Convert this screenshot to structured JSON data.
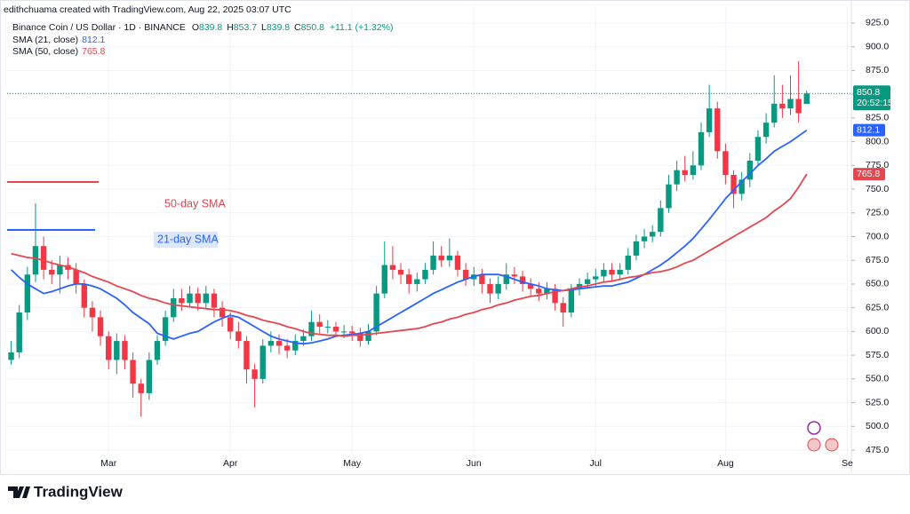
{
  "attribution": "edithchuama created with TradingView.com, Aug 22, 2025 03:07 UTC",
  "header": {
    "symbol": "Binance Coin / US Dollar · 1D · BINANCE",
    "ohlc_letters": [
      "O",
      "H",
      "L",
      "C"
    ],
    "change": "+11.1 (+1.32%)",
    "countdown": "20:52:15"
  },
  "brand": "TradingView",
  "chart_data": {
    "type": "candlestick",
    "categories": [
      null,
      null,
      null,
      null,
      null,
      null,
      null,
      null,
      null,
      null,
      null,
      null,
      "Mar",
      null,
      null,
      null,
      null,
      null,
      null,
      null,
      null,
      null,
      null,
      null,
      null,
      null,
      null,
      "Apr",
      null,
      null,
      null,
      null,
      null,
      null,
      null,
      null,
      null,
      null,
      null,
      null,
      null,
      null,
      "May",
      null,
      null,
      null,
      null,
      null,
      null,
      null,
      null,
      null,
      null,
      null,
      null,
      null,
      null,
      "Jun",
      null,
      null,
      null,
      null,
      null,
      null,
      null,
      null,
      null,
      null,
      null,
      null,
      null,
      null,
      "Jul",
      null,
      null,
      null,
      null,
      null,
      null,
      null,
      null,
      null,
      null,
      null,
      null,
      null,
      null,
      null,
      "Aug",
      null,
      null,
      null,
      null,
      null,
      null,
      null,
      null,
      null,
      null,
      null,
      null,
      null,
      null,
      "Se"
    ],
    "open": [
      570,
      578,
      620,
      660,
      690,
      665,
      660,
      670,
      665,
      650,
      625,
      615,
      595,
      570,
      590,
      570,
      545,
      535,
      570,
      590,
      615,
      635,
      630,
      640,
      630,
      640,
      625,
      615,
      600,
      590,
      560,
      550,
      585,
      590,
      585,
      580,
      590,
      595,
      610,
      605,
      605,
      600,
      600,
      598,
      590,
      600,
      640,
      670,
      665,
      660,
      650,
      655,
      665,
      680,
      675,
      680,
      665,
      655,
      660,
      650,
      640,
      650,
      660,
      658,
      650,
      645,
      640,
      645,
      630,
      620,
      645,
      650,
      655,
      658,
      665,
      660,
      665,
      680,
      695,
      700,
      705,
      730,
      755,
      770,
      765,
      775,
      810,
      835,
      790,
      765,
      745,
      760,
      780,
      805,
      820,
      840,
      835,
      845,
      839.8,
      null,
      null,
      null,
      null,
      null
    ],
    "high": [
      590,
      628,
      668,
      735,
      700,
      675,
      680,
      678,
      672,
      655,
      632,
      622,
      600,
      598,
      596,
      578,
      550,
      578,
      596,
      622,
      645,
      645,
      648,
      646,
      648,
      645,
      632,
      620,
      610,
      595,
      566,
      592,
      600,
      597,
      592,
      597,
      602,
      622,
      618,
      612,
      610,
      607,
      606,
      604,
      608,
      648,
      695,
      690,
      672,
      666,
      662,
      672,
      695,
      690,
      698,
      685,
      672,
      668,
      666,
      656,
      658,
      672,
      668,
      664,
      656,
      652,
      652,
      650,
      636,
      650,
      656,
      662,
      666,
      672,
      672,
      672,
      688,
      702,
      708,
      712,
      738,
      765,
      780,
      785,
      790,
      820,
      860,
      842,
      798,
      770,
      768,
      788,
      812,
      830,
      870,
      860,
      870,
      885,
      853.7,
      null,
      null,
      null,
      null,
      null
    ],
    "low": [
      565,
      572,
      612,
      652,
      655,
      650,
      640,
      655,
      640,
      615,
      600,
      585,
      560,
      555,
      560,
      530,
      510,
      528,
      565,
      585,
      610,
      622,
      625,
      622,
      625,
      615,
      605,
      592,
      582,
      545,
      520,
      545,
      578,
      576,
      572,
      575,
      585,
      590,
      598,
      598,
      594,
      593,
      590,
      584,
      586,
      596,
      635,
      655,
      650,
      640,
      642,
      650,
      660,
      668,
      668,
      658,
      648,
      648,
      640,
      630,
      634,
      644,
      650,
      642,
      638,
      632,
      634,
      622,
      605,
      615,
      638,
      645,
      648,
      652,
      654,
      654,
      660,
      675,
      688,
      694,
      700,
      725,
      748,
      758,
      760,
      770,
      805,
      782,
      755,
      730,
      738,
      752,
      775,
      798,
      815,
      825,
      828,
      820,
      839.8,
      null,
      null,
      null,
      null,
      null
    ],
    "close": [
      578,
      620,
      660,
      690,
      665,
      660,
      670,
      665,
      650,
      625,
      615,
      595,
      570,
      590,
      570,
      545,
      535,
      570,
      590,
      615,
      635,
      630,
      640,
      630,
      640,
      625,
      615,
      600,
      590,
      560,
      550,
      585,
      590,
      585,
      580,
      590,
      595,
      610,
      605,
      605,
      600,
      600,
      598,
      590,
      600,
      640,
      670,
      665,
      660,
      650,
      655,
      665,
      680,
      675,
      680,
      665,
      655,
      660,
      650,
      640,
      650,
      660,
      658,
      650,
      645,
      640,
      645,
      630,
      620,
      645,
      650,
      655,
      658,
      665,
      660,
      665,
      680,
      695,
      700,
      705,
      730,
      755,
      770,
      765,
      775,
      810,
      835,
      790,
      765,
      745,
      760,
      780,
      805,
      820,
      840,
      835,
      845,
      830,
      850.8,
      null,
      null,
      null,
      null,
      null
    ],
    "up_color": "#089981",
    "down_color": "#f23645",
    "series": [
      {
        "name": "SMA (21, close)",
        "color": "#2962ff",
        "values": [
          665,
          657,
          650,
          645,
          640,
          642,
          645,
          648,
          650,
          650,
          648,
          645,
          640,
          635,
          628,
          620,
          614,
          608,
          598,
          595,
          592,
          595,
          598,
          600,
          605,
          610,
          614,
          617,
          615,
          610,
          605,
          600,
          595,
          592,
          590,
          588,
          587,
          588,
          590,
          592,
          595,
          596,
          597,
          598,
          600,
          605,
          610,
          615,
          620,
          625,
          630,
          635,
          640,
          644,
          648,
          652,
          655,
          658,
          660,
          660,
          660,
          658,
          655,
          652,
          650,
          648,
          645,
          644,
          643,
          644,
          645,
          646,
          647,
          648,
          648,
          650,
          652,
          656,
          660,
          665,
          670,
          676,
          683,
          690,
          698,
          708,
          718,
          729,
          740,
          749,
          758,
          766,
          775,
          782,
          790,
          795,
          800,
          806,
          812.1,
          null,
          null,
          null,
          null,
          null
        ]
      },
      {
        "name": "SMA (50, close)",
        "color": "#e5474f",
        "values": [
          682,
          680,
          678,
          677,
          675,
          672,
          670,
          668,
          665,
          662,
          658,
          655,
          652,
          648,
          645,
          642,
          638,
          635,
          633,
          630,
          628,
          627,
          626,
          625,
          624,
          623,
          623,
          622,
          620,
          617,
          615,
          612,
          610,
          608,
          605,
          603,
          600,
          598,
          597,
          596,
          596,
          595,
          596,
          596,
          597,
          598,
          599,
          600,
          601,
          602,
          603,
          605,
          608,
          610,
          613,
          615,
          618,
          620,
          623,
          625,
          628,
          630,
          633,
          635,
          637,
          638,
          640,
          642,
          643,
          645,
          647,
          648,
          650,
          652,
          653,
          655,
          657,
          658,
          660,
          662,
          663,
          665,
          668,
          672,
          675,
          680,
          685,
          690,
          695,
          700,
          705,
          710,
          715,
          720,
          727,
          733,
          740,
          752,
          765.8,
          null,
          null,
          null,
          null,
          null
        ]
      }
    ],
    "annotations": [
      "50-day SMA",
      "21-day SMA"
    ],
    "ylim": [
      469.4,
      941.8
    ],
    "yticks": [
      {
        "value": 475,
        "label": "475.0"
      },
      {
        "value": 500,
        "label": "500.0"
      },
      {
        "value": 525,
        "label": "525.0"
      },
      {
        "value": 550,
        "label": "550.0"
      },
      {
        "value": 575,
        "label": "575.0"
      },
      {
        "value": 600,
        "label": "600.0"
      },
      {
        "value": 625,
        "label": "625.0"
      },
      {
        "value": 650,
        "label": "650.0"
      },
      {
        "value": 675,
        "label": "675.0"
      },
      {
        "value": 700,
        "label": "700.0"
      },
      {
        "value": 725,
        "label": "725.0"
      },
      {
        "value": 750,
        "label": "750.0"
      },
      {
        "value": 775,
        "label": "775.0"
      },
      {
        "value": 800,
        "label": "800.0"
      },
      {
        "value": 825,
        "label": "825.0"
      },
      {
        "value": 850,
        "label": "850.0"
      },
      {
        "value": 875,
        "label": "875.0"
      },
      {
        "value": 900,
        "label": "900.0"
      },
      {
        "value": 925,
        "label": "925.0"
      }
    ],
    "grid": true
  }
}
